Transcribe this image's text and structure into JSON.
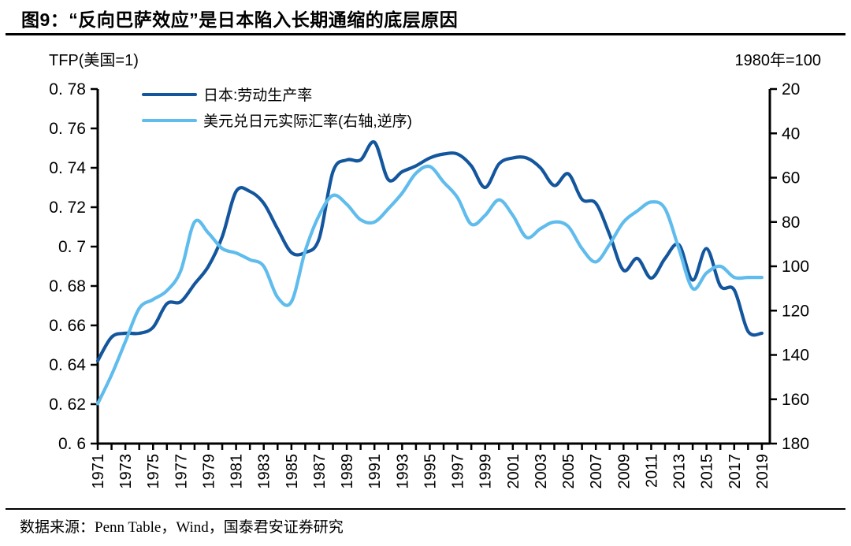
{
  "header": {
    "title": "图9：“反向巴萨效应”是日本陷入长期通缩的底层原因"
  },
  "footer": {
    "source": "数据来源：Penn Table，Wind，国泰君安证券研究"
  },
  "chart_data": {
    "type": "line",
    "title": "",
    "left_axis": {
      "title": "TFP(美国=1)",
      "min": 0.6,
      "max": 0.78,
      "tick_step": 0.02,
      "tick_labels": [
        "0. 78",
        "0. 76",
        "0. 74",
        "0. 72",
        "0. 7",
        "0. 68",
        "0. 66",
        "0. 64",
        "0. 62",
        "0. 6"
      ]
    },
    "right_axis": {
      "title": "1980年=100",
      "min": 20,
      "max": 180,
      "tick_step": 20,
      "reversed": true,
      "tick_labels": [
        "20",
        "40",
        "60",
        "80",
        "100",
        "120",
        "140",
        "160",
        "180"
      ]
    },
    "x_tick_labels": [
      "1971",
      "1973",
      "1975",
      "1977",
      "1979",
      "1981",
      "1983",
      "1985",
      "1987",
      "1989",
      "1991",
      "1993",
      "1995",
      "1997",
      "1999",
      "2001",
      "2003",
      "2005",
      "2007",
      "2009",
      "2011",
      "2013",
      "2015",
      "2017",
      "2019"
    ],
    "x": [
      1971,
      1972,
      1973,
      1974,
      1975,
      1976,
      1977,
      1978,
      1979,
      1980,
      1981,
      1982,
      1983,
      1984,
      1985,
      1986,
      1987,
      1988,
      1989,
      1990,
      1991,
      1992,
      1993,
      1994,
      1995,
      1996,
      1997,
      1998,
      1999,
      2000,
      2001,
      2002,
      2003,
      2004,
      2005,
      2006,
      2007,
      2008,
      2009,
      2010,
      2011,
      2012,
      2013,
      2014,
      2015,
      2016,
      2017,
      2018,
      2019
    ],
    "series": [
      {
        "name": "日本:劳动生产率",
        "axis": "left",
        "color": "#14569D",
        "values": [
          0.642,
          0.654,
          0.656,
          0.656,
          0.659,
          0.671,
          0.672,
          0.681,
          0.69,
          0.705,
          0.728,
          0.728,
          0.722,
          0.709,
          0.697,
          0.697,
          0.704,
          0.738,
          0.744,
          0.744,
          0.753,
          0.734,
          0.738,
          0.741,
          0.745,
          0.747,
          0.747,
          0.741,
          0.73,
          0.742,
          0.745,
          0.745,
          0.74,
          0.731,
          0.737,
          0.724,
          0.722,
          0.706,
          0.688,
          0.694,
          0.684,
          0.694,
          0.701,
          0.683,
          0.699,
          0.68,
          0.678,
          0.657,
          0.656
        ]
      },
      {
        "name": "美元兑日元实际汇率(右轴,逆序)",
        "axis": "right",
        "color": "#5FBCEC",
        "values": [
          162,
          149,
          134,
          119,
          115,
          111,
          102,
          80,
          85,
          92,
          94,
          97,
          100,
          114,
          116,
          93,
          77,
          68,
          72,
          79,
          80,
          74,
          67,
          58,
          55,
          62,
          69,
          81,
          77,
          70,
          77,
          87,
          83,
          80,
          82,
          92,
          98,
          90,
          80,
          75,
          71,
          74,
          92,
          110,
          103,
          100,
          105,
          105,
          105
        ]
      }
    ],
    "legend_position": "top-left",
    "grid": false
  }
}
